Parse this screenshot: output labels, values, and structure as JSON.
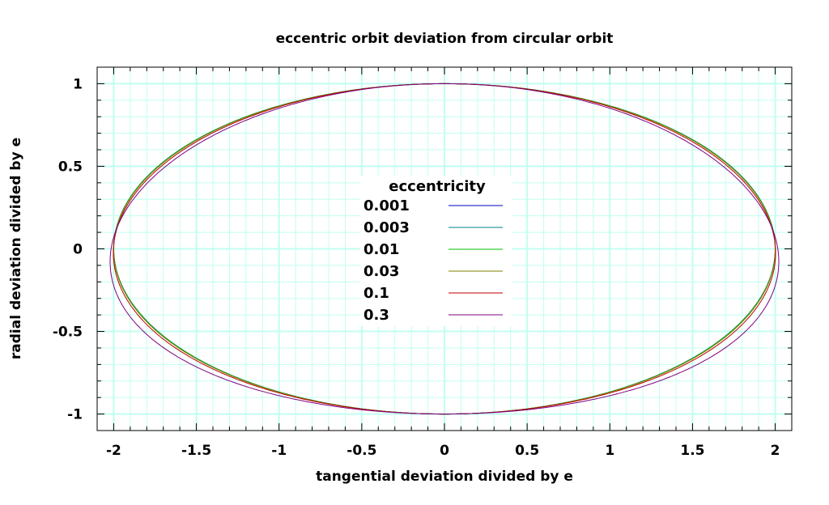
{
  "chart_data": {
    "type": "line",
    "title": "eccentric orbit deviation from circular orbit",
    "xlabel": "tangential deviation divided by e",
    "ylabel": "radial deviation divided by e",
    "xlim": [
      -2.1,
      2.1
    ],
    "ylim": [
      -1.1,
      1.1
    ],
    "xticks": [
      "-2",
      "-1.5",
      "-1",
      "-0.5",
      "0",
      "0.5",
      "1",
      "1.5",
      "2"
    ],
    "xtick_values": [
      -2,
      -1.5,
      -1,
      -0.5,
      0,
      0.5,
      1,
      1.5,
      2
    ],
    "yticks": [
      "1",
      "0.5",
      "0",
      "-0.5",
      "-1"
    ],
    "ytick_values": [
      1,
      0.5,
      0,
      -0.5,
      -1
    ],
    "grid": "on (major and minor, step 0.1)",
    "legend_title": "eccentricity",
    "legend_placement": "center",
    "series": [
      {
        "name": "0.001",
        "e": 0.001,
        "color": "#0000c0"
      },
      {
        "name": "0.003",
        "e": 0.003,
        "color": "#008080"
      },
      {
        "name": "0.01",
        "e": 0.01,
        "color": "#00c000"
      },
      {
        "name": "0.03",
        "e": 0.03,
        "color": "#808000"
      },
      {
        "name": "0.1",
        "e": 0.1,
        "color": "#c00000"
      },
      {
        "name": "0.3",
        "e": 0.3,
        "color": "#800080"
      }
    ]
  }
}
